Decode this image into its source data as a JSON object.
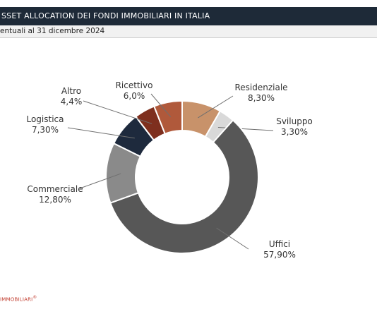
{
  "header": {
    "title": "SSET ALLOCATION DEI FONDI IMMOBILIARI IN ITALIA",
    "subtitle": "entuali al 31 dicembre 2024"
  },
  "footer": {
    "source": "IMMOBILIARI"
  },
  "chart_data": {
    "type": "pie",
    "variant": "donut",
    "title": "SSET ALLOCATION DEI FONDI IMMOBILIARI IN ITALIA",
    "subtitle": "entuali al 31 dicembre 2024",
    "legend": "none",
    "slices": [
      {
        "name": "Residenziale",
        "label": "8,30%",
        "value": 8.3,
        "color": "#c8926a"
      },
      {
        "name": "Sviluppo",
        "label": "3,30%",
        "value": 3.3,
        "color": "#d9d9d9"
      },
      {
        "name": "Uffici",
        "label": "57,90%",
        "value": 57.9,
        "color": "#575757"
      },
      {
        "name": "Commerciale",
        "label": "12,80%",
        "value": 12.8,
        "color": "#8a8a8a"
      },
      {
        "name": "Logistica",
        "label": "7,30%",
        "value": 7.3,
        "color": "#1e2a3d"
      },
      {
        "name": "Altro",
        "label": "4,4%",
        "value": 4.4,
        "color": "#7e2f1e"
      },
      {
        "name": "Ricettivo",
        "label": "6,0%",
        "value": 6.0,
        "color": "#b0593b"
      }
    ]
  }
}
